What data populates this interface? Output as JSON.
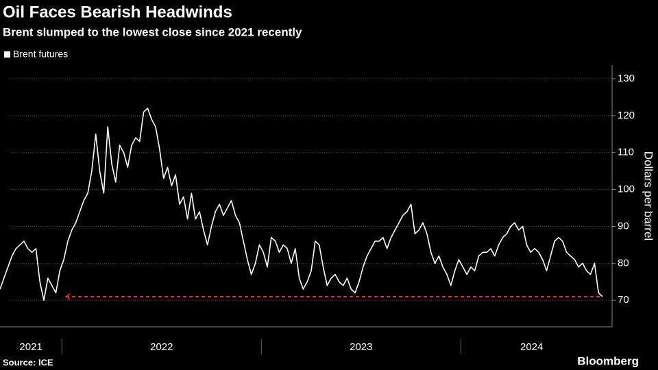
{
  "chart_data": {
    "type": "line",
    "title": "Oil Faces Bearish Headwinds",
    "subtitle": "Brent slumped to the lowest close since 2021 recently",
    "y_label": "Dollars per barrel",
    "source": "Source: ICE",
    "branding": "Bloomberg",
    "grid": true,
    "legend": "top-left",
    "xlim": [
      2021.69,
      2024.71
    ],
    "xticks": [
      {
        "value": 2021,
        "label": "2021"
      },
      {
        "value": 2022,
        "label": "2022"
      },
      {
        "value": 2023,
        "label": "2023"
      },
      {
        "value": 2024,
        "label": "2024"
      }
    ],
    "ylim": [
      62.8,
      133.7
    ],
    "yticks": [
      70,
      80,
      90,
      100,
      110,
      120,
      130
    ],
    "reference_line": {
      "y": 71,
      "x": [
        2022.02,
        2024.7
      ],
      "color": "#d9363e"
    },
    "x": [
      2021.69,
      2021.71,
      2021.73,
      2021.75,
      2021.77,
      2021.79,
      2021.81,
      2021.83,
      2021.85,
      2021.87,
      2021.89,
      2021.91,
      2021.93,
      2021.95,
      2021.97,
      2021.99,
      2022.01,
      2022.03,
      2022.05,
      2022.07,
      2022.09,
      2022.11,
      2022.13,
      2022.15,
      2022.17,
      2022.19,
      2022.21,
      2022.23,
      2022.25,
      2022.27,
      2022.29,
      2022.31,
      2022.33,
      2022.35,
      2022.37,
      2022.39,
      2022.41,
      2022.43,
      2022.45,
      2022.47,
      2022.49,
      2022.51,
      2022.53,
      2022.55,
      2022.57,
      2022.59,
      2022.61,
      2022.63,
      2022.65,
      2022.67,
      2022.69,
      2022.71,
      2022.73,
      2022.75,
      2022.77,
      2022.79,
      2022.81,
      2022.83,
      2022.85,
      2022.87,
      2022.89,
      2022.91,
      2022.93,
      2022.95,
      2022.97,
      2022.99,
      2023.01,
      2023.03,
      2023.05,
      2023.07,
      2023.09,
      2023.11,
      2023.13,
      2023.15,
      2023.17,
      2023.19,
      2023.21,
      2023.23,
      2023.25,
      2023.27,
      2023.29,
      2023.31,
      2023.33,
      2023.35,
      2023.37,
      2023.39,
      2023.41,
      2023.43,
      2023.45,
      2023.47,
      2023.49,
      2023.51,
      2023.53,
      2023.55,
      2023.57,
      2023.59,
      2023.61,
      2023.63,
      2023.65,
      2023.67,
      2023.69,
      2023.71,
      2023.73,
      2023.75,
      2023.77,
      2023.79,
      2023.81,
      2023.83,
      2023.85,
      2023.87,
      2023.89,
      2023.91,
      2023.93,
      2023.95,
      2023.97,
      2023.99,
      2024.01,
      2024.03,
      2024.05,
      2024.07,
      2024.09,
      2024.11,
      2024.13,
      2024.15,
      2024.17,
      2024.19,
      2024.21,
      2024.23,
      2024.25,
      2024.27,
      2024.29,
      2024.31,
      2024.33,
      2024.35,
      2024.37,
      2024.39,
      2024.41,
      2024.43,
      2024.45,
      2024.47,
      2024.49,
      2024.51,
      2024.53,
      2024.55,
      2024.57,
      2024.59,
      2024.61,
      2024.63,
      2024.65,
      2024.67,
      2024.69,
      2024.71
    ],
    "series": [
      {
        "name": "Brent futures",
        "color": "#ffffff",
        "values": [
          73,
          76,
          79,
          82,
          84,
          85,
          86,
          84,
          83,
          84,
          75,
          70,
          76,
          74,
          72,
          78,
          81,
          86,
          89,
          91,
          94,
          97,
          99,
          105,
          115,
          105,
          99,
          117,
          107,
          102,
          112,
          110,
          106,
          112,
          114,
          113,
          121,
          122,
          119,
          117,
          111,
          103,
          106,
          101,
          104,
          96,
          98,
          92,
          99,
          92,
          94,
          89,
          85,
          90,
          94,
          96,
          93,
          95,
          97,
          93,
          91,
          86,
          81,
          77,
          80,
          85,
          83,
          79,
          87,
          86,
          83,
          85,
          84,
          80,
          84,
          76,
          73,
          75,
          78,
          86,
          85,
          79,
          74,
          76,
          77,
          75,
          74,
          76,
          73,
          72,
          75,
          79,
          82,
          84,
          86,
          86,
          87,
          84,
          87,
          89,
          91,
          93,
          94,
          96,
          88,
          89,
          91,
          88,
          83,
          80,
          82,
          79,
          77,
          74,
          78,
          81,
          79,
          77,
          79,
          78,
          82,
          83,
          83,
          84,
          82,
          85,
          87,
          88,
          90,
          91,
          89,
          90,
          85,
          83,
          84,
          83,
          81,
          78,
          82,
          86,
          87,
          86,
          83,
          82,
          81,
          79,
          80,
          78,
          77,
          80,
          72,
          71
        ]
      }
    ]
  }
}
